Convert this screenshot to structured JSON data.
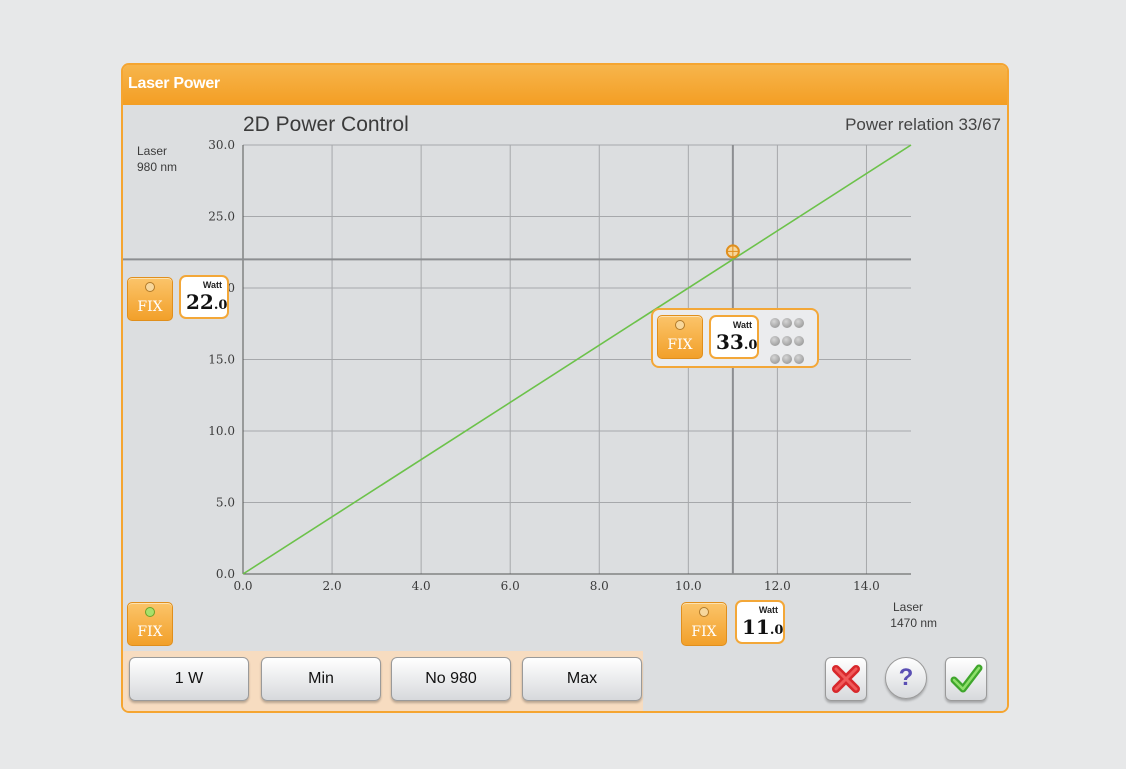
{
  "window": {
    "title": "Laser Power"
  },
  "chart_data": {
    "type": "line",
    "title": "2D Power Control",
    "subtitle": "Power relation 33/67",
    "ylabel": "Laser\n980 nm",
    "xlabel": "Laser\n1470 nm",
    "xlim": [
      0,
      15
    ],
    "ylim": [
      0,
      30
    ],
    "x_ticks": [
      "0.0",
      "2.0",
      "4.0",
      "6.0",
      "8.0",
      "10.0",
      "12.0",
      "14.0"
    ],
    "y_ticks": [
      "0.0",
      "5.0",
      "10.0",
      "15.0",
      "20.0",
      "25.0",
      "30.0"
    ],
    "series": [
      {
        "x": [
          0,
          15
        ],
        "y": [
          0,
          30
        ],
        "color": "#6cc24a"
      }
    ],
    "crosshair": {
      "x": 11.0,
      "y": 22.0
    },
    "grid": true
  },
  "labels": {
    "y_axis_line1": "Laser",
    "y_axis_line2": "980 nm",
    "x_axis_line1": "Laser",
    "x_axis_line2": "1470 nm"
  },
  "fix": {
    "label": "FIX",
    "unit": "Watt"
  },
  "laser980": {
    "value_int": "22",
    "value_dec": ".0"
  },
  "laser1470": {
    "value_int": "11",
    "value_dec": ".0"
  },
  "total": {
    "value_int": "33",
    "value_dec": ".0"
  },
  "buttons": {
    "one_w": "1 W",
    "min": "Min",
    "no980": "No 980",
    "max": "Max",
    "help": "?"
  },
  "colors": {
    "accent": "#f3a738",
    "line": "#6cc24a",
    "grid": "#a6a8ab"
  }
}
